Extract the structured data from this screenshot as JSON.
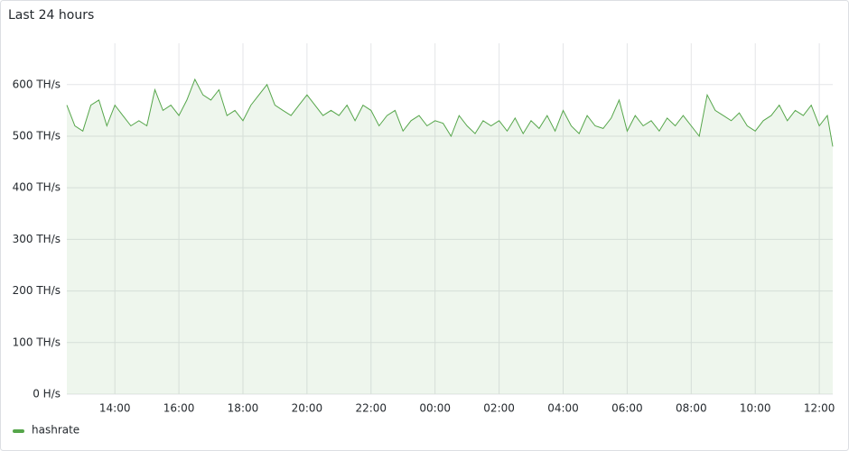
{
  "chart_data": {
    "type": "line",
    "title": "Last 24 hours",
    "x": [
      12.5,
      12.75,
      13,
      13.25,
      13.5,
      13.75,
      14,
      14.25,
      14.5,
      14.75,
      15,
      15.25,
      15.5,
      15.75,
      16,
      16.25,
      16.5,
      16.75,
      17,
      17.25,
      17.5,
      17.75,
      18,
      18.25,
      18.5,
      18.75,
      19,
      19.25,
      19.5,
      19.75,
      20,
      20.25,
      20.5,
      20.75,
      21,
      21.25,
      21.5,
      21.75,
      22,
      22.25,
      22.5,
      22.75,
      23,
      23.25,
      23.5,
      23.75,
      24,
      24.25,
      24.5,
      24.75,
      25,
      25.25,
      25.5,
      25.75,
      26,
      26.25,
      26.5,
      26.75,
      27,
      27.25,
      27.5,
      27.75,
      28,
      28.25,
      28.5,
      28.75,
      29,
      29.25,
      29.5,
      29.75,
      30,
      30.25,
      30.5,
      30.75,
      31,
      31.25,
      31.5,
      31.75,
      32,
      32.25,
      32.5,
      32.75,
      33,
      33.25,
      33.5,
      33.75,
      34,
      34.25,
      34.5,
      34.75,
      35,
      35.25,
      35.5,
      35.75,
      36,
      36.25,
      36.42
    ],
    "series": [
      {
        "name": "hashrate",
        "color": "#56a64b",
        "values": [
          560,
          520,
          510,
          560,
          570,
          520,
          560,
          540,
          520,
          530,
          520,
          590,
          550,
          560,
          540,
          570,
          610,
          580,
          570,
          590,
          540,
          550,
          530,
          560,
          580,
          600,
          560,
          550,
          540,
          560,
          580,
          560,
          540,
          550,
          540,
          560,
          530,
          560,
          550,
          520,
          540,
          550,
          510,
          530,
          540,
          520,
          530,
          525,
          500,
          540,
          520,
          505,
          530,
          520,
          530,
          510,
          535,
          505,
          530,
          515,
          540,
          510,
          550,
          520,
          505,
          540,
          520,
          515,
          535,
          570,
          510,
          540,
          520,
          530,
          510,
          535,
          520,
          540,
          520,
          500,
          580,
          550,
          540,
          530,
          545,
          520,
          510,
          530,
          540,
          560,
          530,
          550,
          540,
          560,
          520,
          540,
          480
        ]
      }
    ],
    "xlim": [
      12.5,
      36.42
    ],
    "xticks": [
      {
        "value": 14,
        "label": "14:00"
      },
      {
        "value": 16,
        "label": "16:00"
      },
      {
        "value": 18,
        "label": "18:00"
      },
      {
        "value": 20,
        "label": "20:00"
      },
      {
        "value": 22,
        "label": "22:00"
      },
      {
        "value": 24,
        "label": "00:00"
      },
      {
        "value": 26,
        "label": "02:00"
      },
      {
        "value": 28,
        "label": "04:00"
      },
      {
        "value": 30,
        "label": "06:00"
      },
      {
        "value": 32,
        "label": "08:00"
      },
      {
        "value": 34,
        "label": "10:00"
      },
      {
        "value": 36,
        "label": "12:00"
      }
    ],
    "ylim": [
      0,
      680
    ],
    "yticks": [
      {
        "value": 0,
        "label": "0 H/s"
      },
      {
        "value": 100,
        "label": "100 TH/s"
      },
      {
        "value": 200,
        "label": "200 TH/s"
      },
      {
        "value": 300,
        "label": "300 TH/s"
      },
      {
        "value": 400,
        "label": "400 TH/s"
      },
      {
        "value": 500,
        "label": "500 TH/s"
      },
      {
        "value": 600,
        "label": "600 TH/s"
      }
    ],
    "grid": true
  }
}
